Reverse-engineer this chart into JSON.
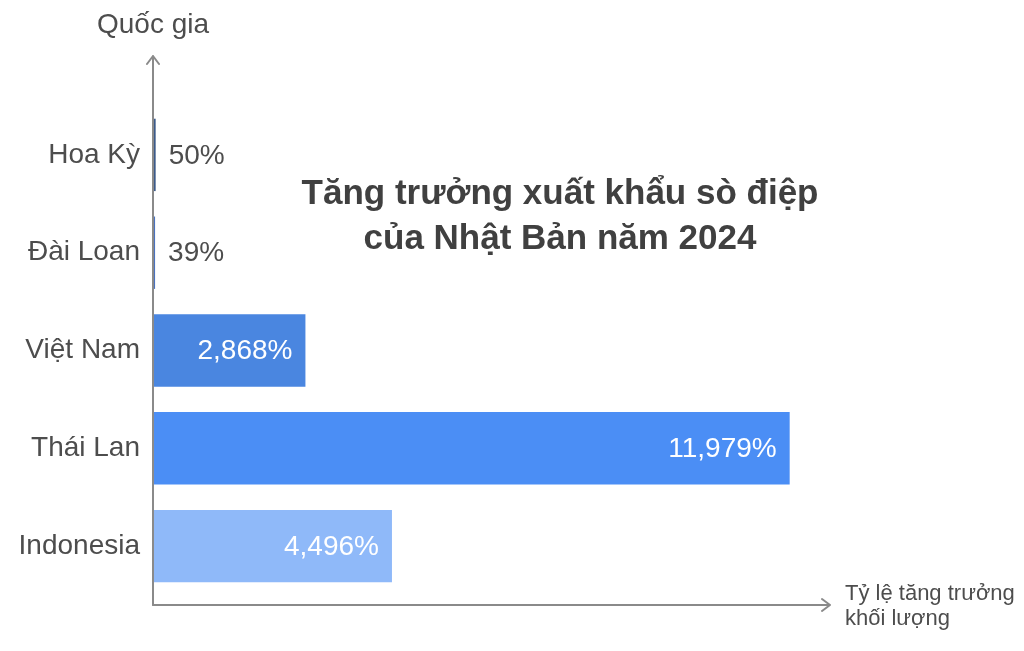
{
  "chart_data": {
    "type": "bar",
    "orientation": "horizontal",
    "title": "Tăng trưởng xuất khẩu sò điệp của Nhật Bản năm 2024",
    "xlabel": "Tỷ lệ tăng trưởng khối lượng",
    "ylabel": "Quốc gia",
    "categories": [
      "Hoa Kỳ",
      "Đài Loan",
      "Việt Nam",
      "Thái Lan",
      "Indonesia"
    ],
    "values": [
      50,
      39,
      2868,
      11979,
      4496
    ],
    "colors": [
      "#3c5a8a",
      "#4a72c0",
      "#4a86e0",
      "#4b8ef5",
      "#8fb9f9"
    ],
    "value_labels": [
      "50%",
      "39%",
      "2,868%",
      "11,979%",
      "4,496%"
    ],
    "xlim": [
      0,
      12700
    ],
    "tick_labels": "y",
    "grid": false,
    "legend": false
  }
}
